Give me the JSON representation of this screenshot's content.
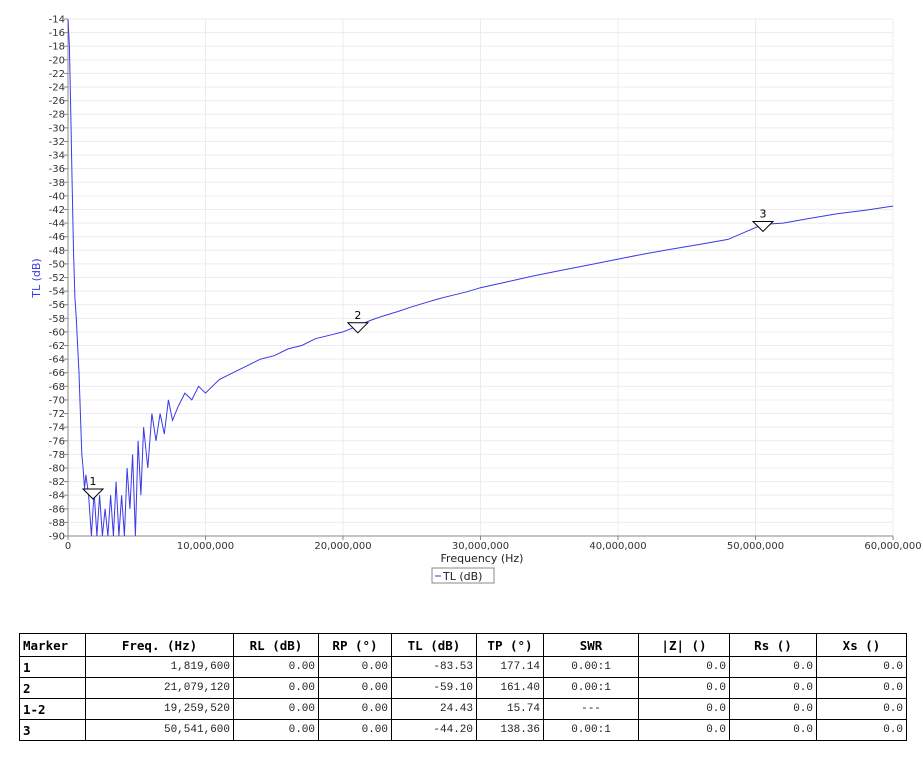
{
  "chart_data": {
    "type": "line",
    "xlabel": "Frequency (Hz)",
    "ylabel": "TL (dB)",
    "xlim": [
      0,
      60000000
    ],
    "ylim": [
      -90,
      -14
    ],
    "x_ticks": [
      0,
      10000000,
      20000000,
      30000000,
      40000000,
      50000000,
      60000000
    ],
    "x_tick_labels": [
      "0",
      "10,000,000",
      "20,000,000",
      "30,000,000",
      "40,000,000",
      "50,000,000",
      "60,000,000"
    ],
    "y_ticks": [
      -90,
      -88,
      -86,
      -84,
      -82,
      -80,
      -78,
      -76,
      -74,
      -72,
      -70,
      -68,
      -66,
      -64,
      -62,
      -60,
      -58,
      -56,
      -54,
      -52,
      -50,
      -48,
      -46,
      -44,
      -42,
      -40,
      -38,
      -36,
      -34,
      -32,
      -30,
      -28,
      -26,
      -24,
      -22,
      -20,
      -18,
      -16,
      -14
    ],
    "grid": true,
    "legend": {
      "position": "bottom-center",
      "entries": [
        "TL (dB)"
      ]
    },
    "series": [
      {
        "name": "TL (dB)",
        "color": "#3a3ae8",
        "x": [
          0,
          100000,
          200000,
          300000,
          400000,
          500000,
          600000,
          700000,
          800000,
          900000,
          1000000,
          1100000,
          1200000,
          1300000,
          1500000,
          1700000,
          1900000,
          2100000,
          2300000,
          2500000,
          2700000,
          2900000,
          3100000,
          3300000,
          3500000,
          3700000,
          3900000,
          4100000,
          4300000,
          4500000,
          4700000,
          4900000,
          5100000,
          5300000,
          5500000,
          5800000,
          6100000,
          6400000,
          6700000,
          7000000,
          7300000,
          7600000,
          8000000,
          8500000,
          9000000,
          9500000,
          10000000,
          11000000,
          12000000,
          13000000,
          14000000,
          15000000,
          16000000,
          17000000,
          18000000,
          19000000,
          20000000,
          21079120,
          22000000,
          23000000,
          24000000,
          25000000,
          26000000,
          27000000,
          28000000,
          29000000,
          30000000,
          32000000,
          34000000,
          36000000,
          38000000,
          40000000,
          42000000,
          44000000,
          46000000,
          48000000,
          50541600,
          52000000,
          54000000,
          56000000,
          58000000,
          60000000
        ],
        "values": [
          -14,
          -18,
          -28,
          -38,
          -48,
          -55,
          -58,
          -62,
          -66,
          -72,
          -78,
          -80,
          -83,
          -81,
          -84,
          -90,
          -83.5,
          -90,
          -84,
          -90,
          -86,
          -90,
          -84,
          -90,
          -82,
          -90,
          -84,
          -90,
          -80,
          -86,
          -78,
          -90,
          -76,
          -84,
          -74,
          -80,
          -72,
          -76,
          -72,
          -75,
          -70,
          -73,
          -71,
          -69,
          -70,
          -68,
          -69,
          -67,
          -66,
          -65,
          -64,
          -63.5,
          -62.5,
          -62,
          -61,
          -60.5,
          -60,
          -59.1,
          -58.3,
          -57.6,
          -57,
          -56.3,
          -55.7,
          -55.1,
          -54.6,
          -54.1,
          -53.5,
          -52.6,
          -51.7,
          -50.9,
          -50.1,
          -49.3,
          -48.5,
          -47.8,
          -47.1,
          -46.4,
          -44.2,
          -44,
          -43.3,
          -42.6,
          -42.1,
          -41.5
        ]
      }
    ],
    "markers": [
      {
        "label": "1",
        "x": 1819600,
        "y": -83.53
      },
      {
        "label": "2",
        "x": 21079120,
        "y": -59.1
      },
      {
        "label": "3",
        "x": 50541600,
        "y": -44.2
      }
    ]
  },
  "table": {
    "headers": [
      "Marker",
      "Freq. (Hz)",
      "RL (dB)",
      "RP (°)",
      "TL (dB)",
      "TP (°)",
      "SWR",
      "|Z| ()",
      "Rs ()",
      "Xs ()"
    ],
    "rows": [
      [
        "1",
        "1,819,600",
        "0.00",
        "0.00",
        "-83.53",
        "177.14",
        "0.00:1",
        "0.0",
        "0.0",
        "0.0"
      ],
      [
        "2",
        "21,079,120",
        "0.00",
        "0.00",
        "-59.10",
        "161.40",
        "0.00:1",
        "0.0",
        "0.0",
        "0.0"
      ],
      [
        "1-2",
        "19,259,520",
        "0.00",
        "0.00",
        "24.43",
        "15.74",
        "---",
        "0.0",
        "0.0",
        "0.0"
      ],
      [
        "3",
        "50,541,600",
        "0.00",
        "0.00",
        "-44.20",
        "138.36",
        "0.00:1",
        "0.0",
        "0.0",
        "0.0"
      ]
    ]
  }
}
